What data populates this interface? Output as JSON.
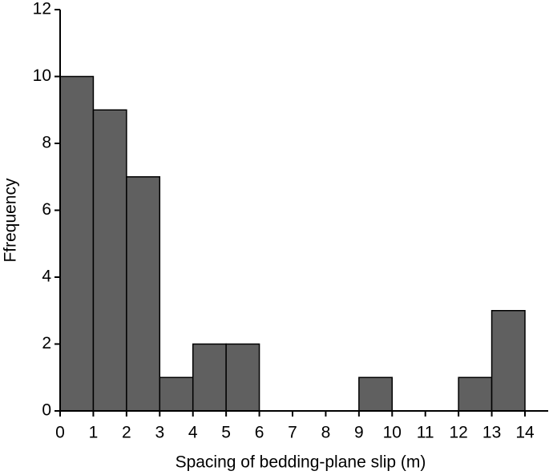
{
  "chart_data": {
    "type": "histogram",
    "xlabel": "Spacing of bedding-plane slip (m)",
    "ylabel": "Ffrequency",
    "bins": [
      0,
      1,
      2,
      3,
      4,
      5,
      6,
      7,
      8,
      9,
      10,
      11,
      12,
      13,
      14
    ],
    "counts": [
      10,
      9,
      7,
      1,
      2,
      2,
      0,
      0,
      0,
      1,
      0,
      0,
      1,
      3
    ],
    "color": "#606060",
    "xlim": [
      0,
      14.7
    ],
    "ylim": [
      0,
      12
    ],
    "xticks": [
      0,
      1,
      2,
      3,
      4,
      5,
      6,
      7,
      8,
      9,
      10,
      11,
      12,
      13,
      14
    ],
    "yticks": [
      0,
      2,
      4,
      6,
      8,
      10,
      12
    ]
  }
}
